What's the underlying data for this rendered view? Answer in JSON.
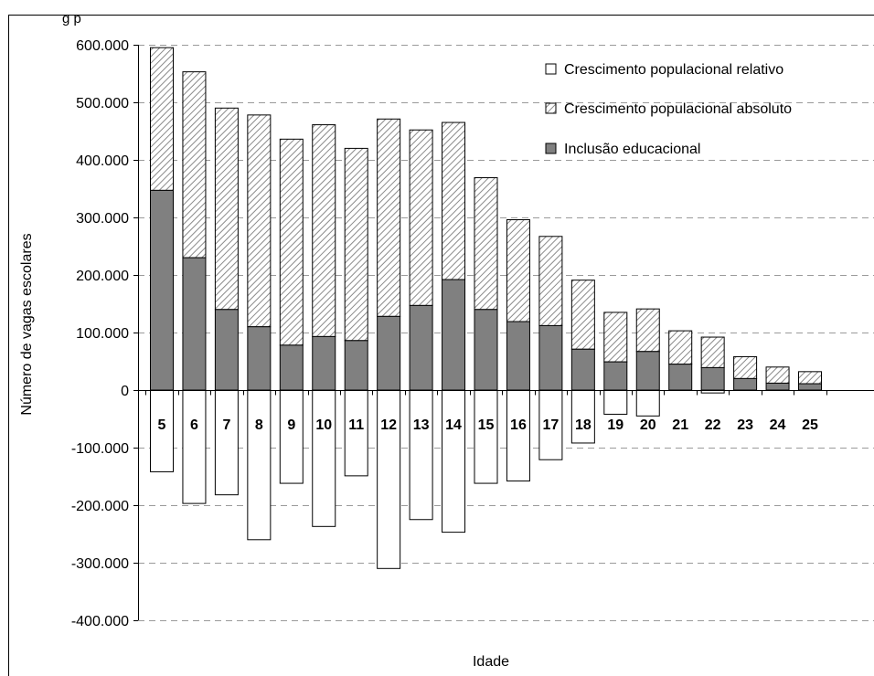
{
  "caption": "g                                        p",
  "chart_data": {
    "type": "bar",
    "stacked": true,
    "xlabel": "Idade",
    "ylabel": "Número de vagas escolares",
    "ylim": [
      -400000,
      600000
    ],
    "yticks": [
      600000,
      500000,
      400000,
      300000,
      200000,
      100000,
      0,
      -100000,
      -200000,
      -300000,
      -400000
    ],
    "ytick_labels": [
      "600.000",
      "500.000",
      "400.000",
      "300.000",
      "200.000",
      "100.000",
      "0",
      "-100.000",
      "-200.000",
      "-300.000",
      "-400.000"
    ],
    "grid": true,
    "legend_position": "top-right",
    "categories": [
      "5",
      "6",
      "7",
      "8",
      "9",
      "10",
      "11",
      "12",
      "13",
      "14",
      "15",
      "16",
      "17",
      "18",
      "19",
      "20",
      "21",
      "22",
      "23",
      "24",
      "25"
    ],
    "series": [
      {
        "name": "Crescimento populacional relativo",
        "pattern": "white",
        "values": [
          -142000,
          -197000,
          -182000,
          -260000,
          -162000,
          -237000,
          -149000,
          -310000,
          -225000,
          -247000,
          -162000,
          -158000,
          -121000,
          -92000,
          -42000,
          -45000,
          0,
          -5000,
          0,
          0,
          0
        ]
      },
      {
        "name": "Crescimento populacional absoluto",
        "pattern": "hatched",
        "values": [
          248000,
          323000,
          350000,
          368000,
          358000,
          368000,
          334000,
          343000,
          305000,
          273000,
          229000,
          177000,
          155000,
          120000,
          86000,
          74000,
          58000,
          53000,
          38000,
          28000,
          21000
        ]
      },
      {
        "name": "Inclusão educacional",
        "pattern": "solid",
        "values": [
          347000,
          230000,
          140000,
          110000,
          78000,
          93000,
          86000,
          128000,
          147000,
          192000,
          140000,
          119000,
          112000,
          71000,
          49000,
          67000,
          45000,
          39000,
          20000,
          12000,
          11000
        ]
      }
    ],
    "colors": {
      "solid": "#808080",
      "hatch_line": "#808080",
      "white": "#ffffff",
      "grid": "#9a9a9a",
      "text": "#000000"
    }
  }
}
